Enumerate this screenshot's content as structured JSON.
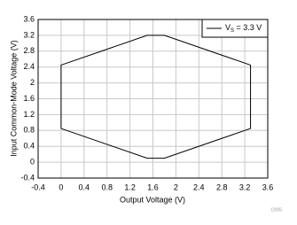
{
  "chart_data": {
    "type": "line",
    "xlabel": "Output Voltage (V)",
    "ylabel": "Input Common-Mode Voltage (V)",
    "figure_id": "D005",
    "x": [
      0,
      0,
      1.5,
      1.8,
      3.3,
      3.3,
      1.8,
      1.5,
      0
    ],
    "series": [
      {
        "name": "VS = 3.3 V",
        "color": "#000000",
        "values": [
          0.85,
          2.45,
          3.2,
          3.2,
          2.45,
          0.85,
          0.1,
          0.1,
          0.85
        ]
      }
    ],
    "xlim": [
      -0.4,
      3.6
    ],
    "xticks": [
      -0.4,
      0,
      0.4,
      0.8,
      1.2,
      1.6,
      2,
      2.4,
      2.8,
      3.2,
      3.6
    ],
    "ylim": [
      -0.4,
      3.6
    ],
    "yticks": [
      -0.4,
      0,
      0.4,
      0.8,
      1.2,
      1.6,
      2,
      2.4,
      2.8,
      3.2,
      3.6
    ],
    "grid": true,
    "legend_position": "upper-right"
  }
}
